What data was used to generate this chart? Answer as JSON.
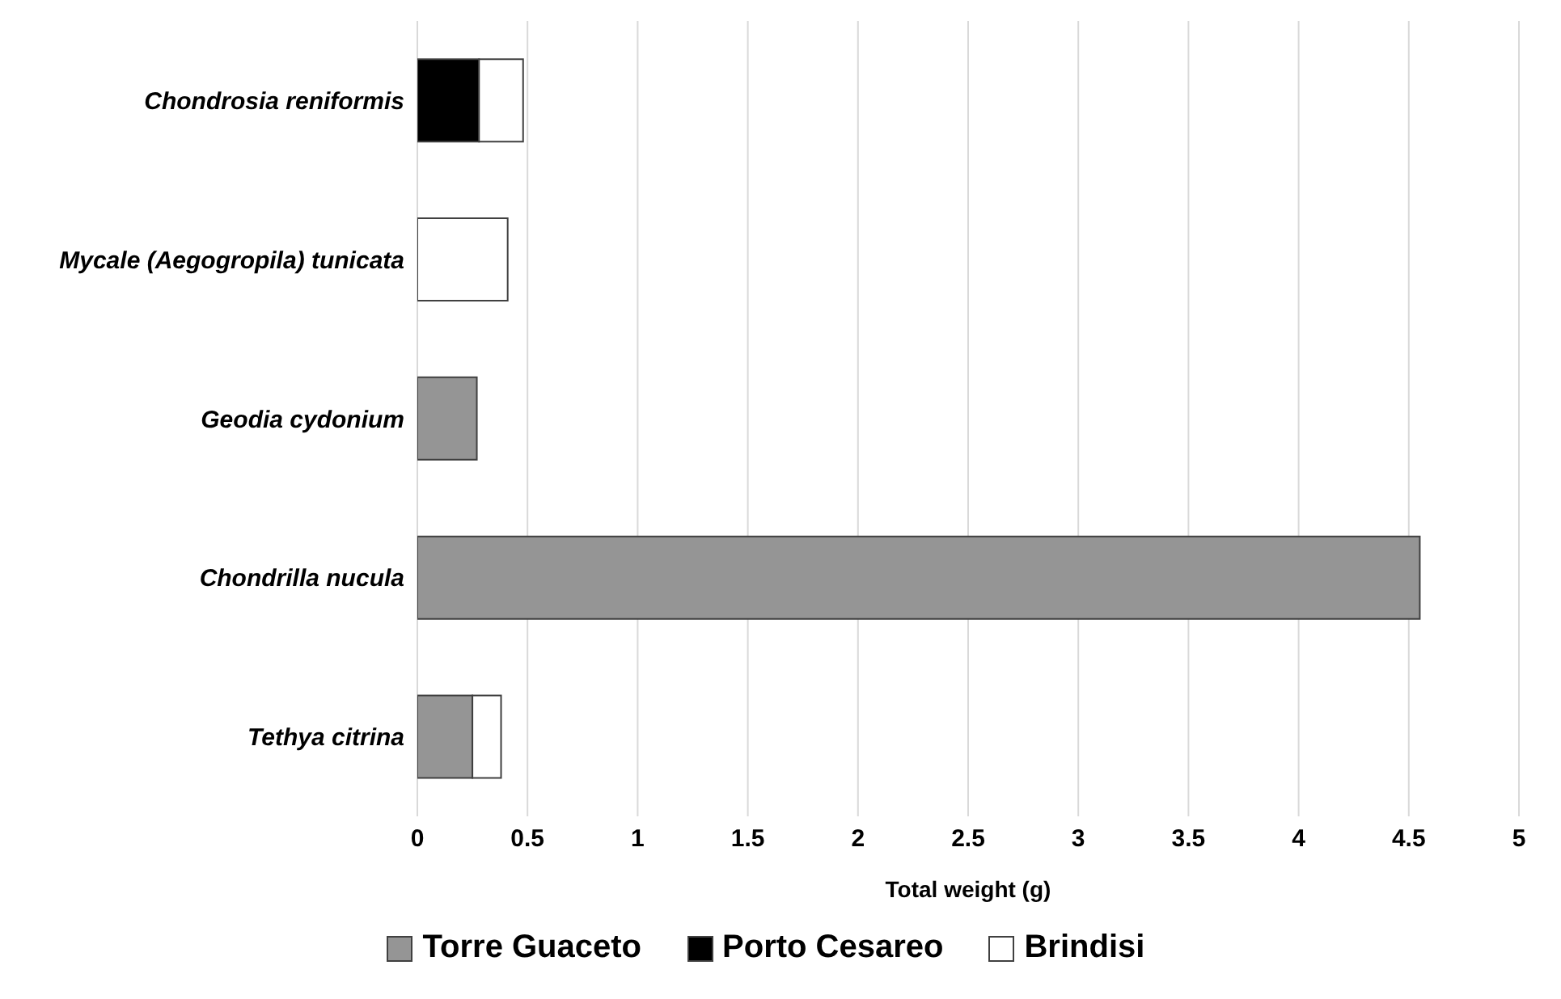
{
  "chart_data": {
    "type": "bar",
    "orientation": "horizontal",
    "stacked": true,
    "xlabel": "Total weight (g)",
    "categories": [
      "Chondrosia reniformis",
      "Mycale (Aegogropila) tunicata",
      "Geodia cydonium",
      "Chondrilla nucula",
      "Tethya citrina"
    ],
    "series": [
      {
        "name": "Torre Guaceto",
        "color": "#959595",
        "values": [
          0,
          0,
          0.27,
          4.55,
          0.25
        ]
      },
      {
        "name": "Porto Cesareo",
        "color": "#000000",
        "values": [
          0.28,
          0,
          0,
          0,
          0
        ]
      },
      {
        "name": "Brindisi",
        "color": "#ffffff",
        "values": [
          0.2,
          0.41,
          0,
          0,
          0.13
        ]
      }
    ],
    "xlim": [
      0,
      5
    ],
    "xticks": [
      0,
      0.5,
      1,
      1.5,
      2,
      2.5,
      3,
      3.5,
      4,
      4.5,
      5
    ],
    "grid": "x",
    "legend": "bottom"
  }
}
